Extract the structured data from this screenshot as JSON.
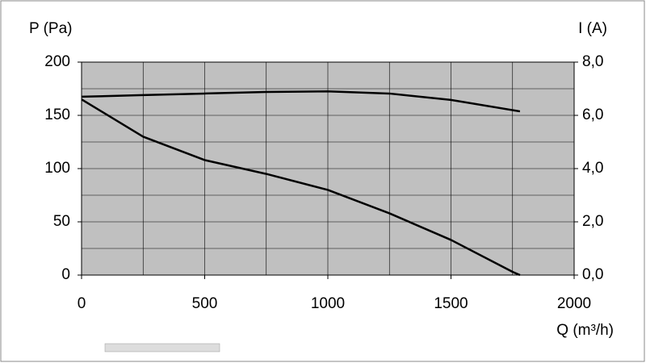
{
  "chart_data": {
    "type": "line",
    "y_label": "P (Pa)",
    "y2_label": "I (A)",
    "x_label": "Q (m³/h)",
    "x": [
      0,
      250,
      500,
      750,
      1000,
      1250,
      1500,
      1750,
      1780
    ],
    "series": [
      {
        "name": "P",
        "color": "#000000",
        "values": [
          165,
          130,
          108,
          95,
          80,
          58,
          33,
          3,
          0
        ]
      },
      {
        "name": "I",
        "color": "#000000",
        "axis": "y2",
        "x": [
          0,
          250,
          500,
          750,
          1000,
          1250,
          1500,
          1780
        ],
        "values": [
          6.7,
          6.76,
          6.82,
          6.88,
          6.9,
          6.82,
          6.58,
          6.15
        ]
      }
    ],
    "xlim": [
      0,
      2000
    ],
    "xticks": [
      0,
      500,
      1000,
      1500,
      2000
    ],
    "ylim": [
      0,
      200
    ],
    "yticks": [
      0,
      50,
      100,
      150,
      200
    ],
    "y2lim": [
      0,
      8
    ],
    "y2ticks": [
      {
        "value": 0,
        "label": "0,0"
      },
      {
        "value": 2,
        "label": "2,0"
      },
      {
        "value": 4,
        "label": "4,0"
      },
      {
        "value": 6,
        "label": "6,0"
      },
      {
        "value": 8,
        "label": "8,0"
      }
    ],
    "xgrid": [
      250,
      500,
      750,
      1000,
      1250,
      1500,
      1750
    ],
    "ygrid": [
      25,
      50,
      75,
      100,
      125,
      150,
      175
    ],
    "grid": true,
    "plot_color": "#c0c0c0"
  }
}
